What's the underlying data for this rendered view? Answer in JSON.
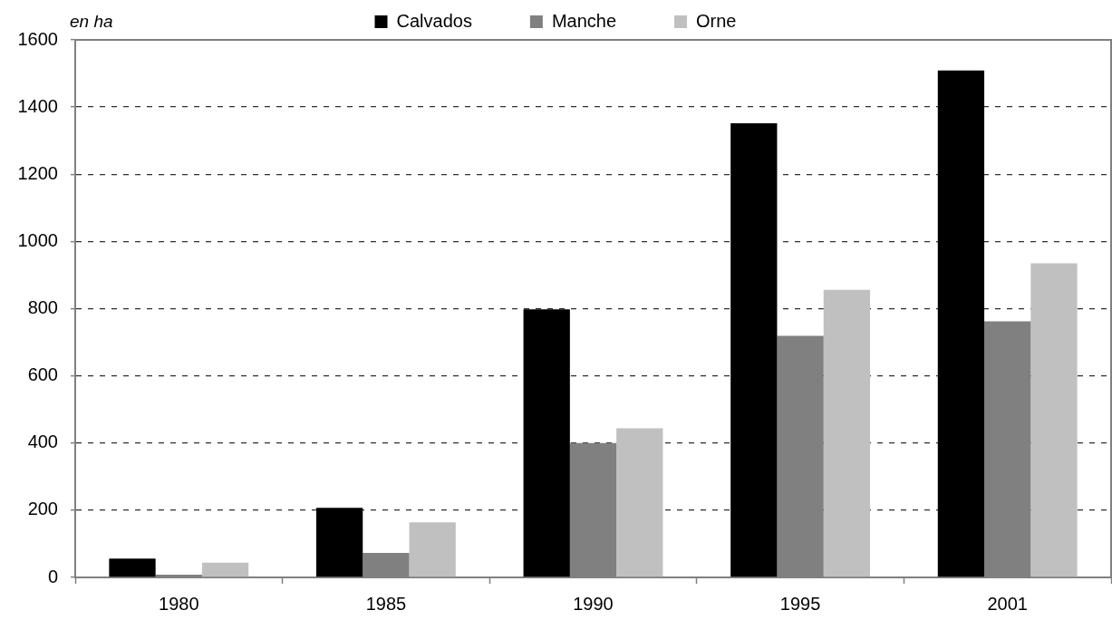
{
  "chart_data": {
    "type": "bar",
    "ylabel": "en ha",
    "categories": [
      "1980",
      "1985",
      "1990",
      "1995",
      "2001"
    ],
    "series": [
      {
        "name": "Calvados",
        "color": "#000000",
        "values": [
          56,
          207,
          798,
          1352,
          1509
        ]
      },
      {
        "name": "Manche",
        "color": "#808080",
        "values": [
          8,
          73,
          400,
          719,
          762
        ]
      },
      {
        "name": "Orne",
        "color": "#c0c0c0",
        "values": [
          44,
          164,
          444,
          856,
          935
        ]
      }
    ],
    "ylim": [
      0,
      1600
    ],
    "yticks": [
      0,
      200,
      400,
      600,
      800,
      1000,
      1200,
      1400,
      1600
    ],
    "grid": "y",
    "legend": "top"
  }
}
